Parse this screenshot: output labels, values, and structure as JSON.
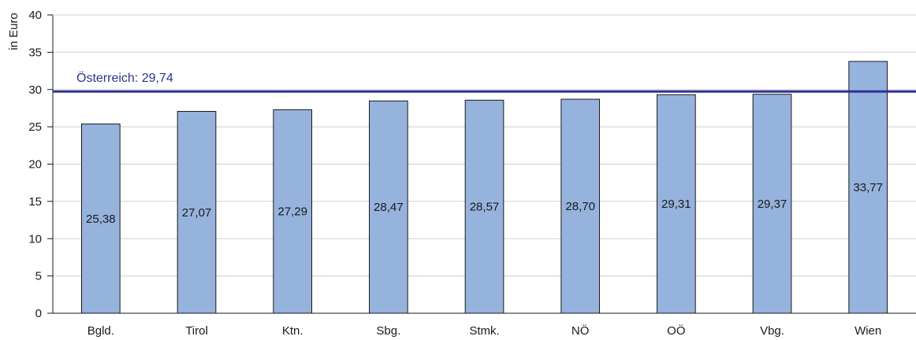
{
  "chart_data": {
    "type": "bar",
    "categories": [
      "Bgld.",
      "Tirol",
      "Ktn.",
      "Sbg.",
      "Stmk.",
      "NÖ",
      "OÖ",
      "Vbg.",
      "Wien"
    ],
    "values": [
      25.38,
      27.07,
      27.29,
      28.47,
      28.57,
      28.7,
      29.31,
      29.37,
      33.77
    ],
    "value_labels": [
      "25,38",
      "27,07",
      "27,29",
      "28,47",
      "28,57",
      "28,70",
      "29,31",
      "29,37",
      "33,77"
    ],
    "ylabel": "in Euro",
    "xlabel": "",
    "ylim": [
      0,
      40
    ],
    "yticks": [
      0,
      5,
      10,
      15,
      20,
      25,
      30,
      35,
      40
    ],
    "grid": true,
    "reference_line": {
      "value": 29.74,
      "label": "Österreich: 29,74"
    },
    "colors": {
      "bar": "#95b3dc",
      "bar_stroke": "#1a1a1a",
      "reference": "#2e3192",
      "grid": "#cfcfcf",
      "axis": "#1a1a1a"
    }
  }
}
